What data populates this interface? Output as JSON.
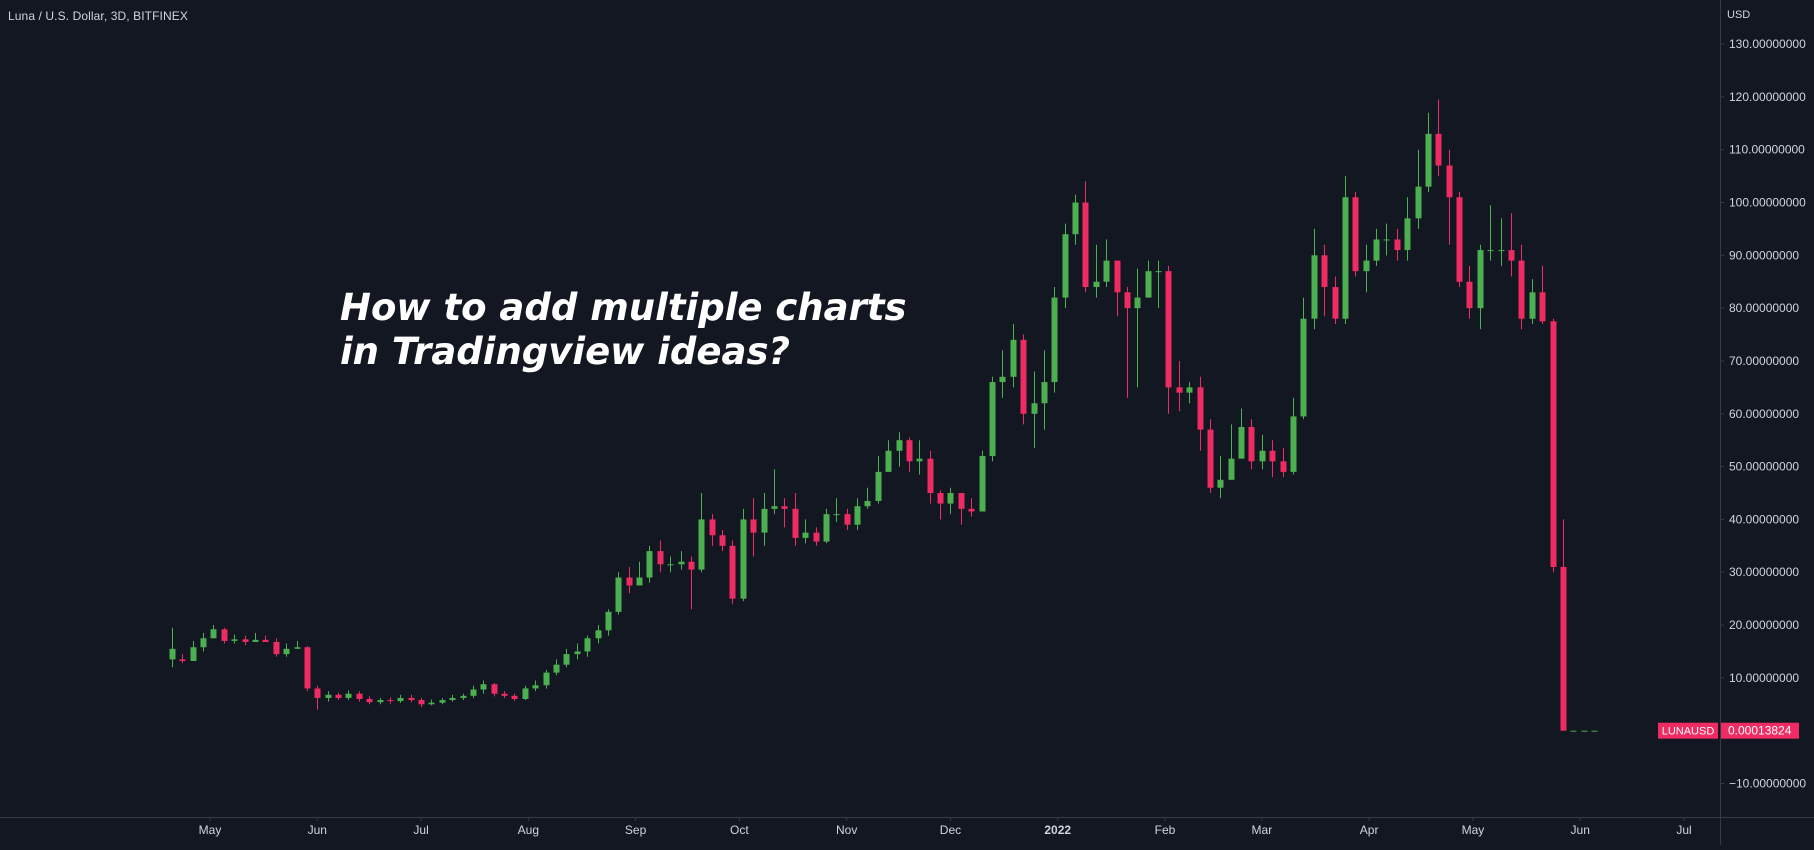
{
  "symbol_title": "Luna / U.S. Dollar, 3D, BITFINEX",
  "overlay_text": {
    "line1": "How to add multiple charts",
    "line2": "in Tradingview ideas?"
  },
  "price_label": {
    "ticker": "LUNAUSD",
    "value": "0.00013824",
    "value_num": 0.00013824,
    "color": "#ef2b63"
  },
  "colors": {
    "background": "#131722",
    "up": "#4caf50",
    "down": "#ef2b63",
    "axis_text": "#d1d4dc",
    "axis_line": "#363a45"
  },
  "chart_data": {
    "type": "candlestick",
    "ylabel": "USD",
    "y_ticks": [
      {
        "value": 130,
        "label": "130.00000000"
      },
      {
        "value": 120,
        "label": "120.00000000"
      },
      {
        "value": 110,
        "label": "110.00000000"
      },
      {
        "value": 100,
        "label": "100.00000000"
      },
      {
        "value": 90,
        "label": "90.00000000"
      },
      {
        "value": 80,
        "label": "80.00000000"
      },
      {
        "value": 70,
        "label": "70.00000000"
      },
      {
        "value": 60,
        "label": "60.00000000"
      },
      {
        "value": 50,
        "label": "50.00000000"
      },
      {
        "value": 40,
        "label": "40.00000000"
      },
      {
        "value": 30,
        "label": "30.00000000"
      },
      {
        "value": 20,
        "label": "20.00000000"
      },
      {
        "value": 10,
        "label": "10.00000000"
      },
      {
        "value": -10,
        "label": "−10.00000000"
      }
    ],
    "x_ticks": [
      {
        "date": "2021-05-01",
        "label": "May"
      },
      {
        "date": "2021-06-01",
        "label": "Jun"
      },
      {
        "date": "2021-07-01",
        "label": "Jul"
      },
      {
        "date": "2021-08-01",
        "label": "Aug"
      },
      {
        "date": "2021-09-01",
        "label": "Sep"
      },
      {
        "date": "2021-10-01",
        "label": "Oct"
      },
      {
        "date": "2021-11-01",
        "label": "Nov"
      },
      {
        "date": "2021-12-01",
        "label": "Dec"
      },
      {
        "date": "2022-01-01",
        "label": "2022"
      },
      {
        "date": "2022-02-01",
        "label": "Feb"
      },
      {
        "date": "2022-03-01",
        "label": "Mar"
      },
      {
        "date": "2022-04-01",
        "label": "Apr"
      },
      {
        "date": "2022-05-01",
        "label": "May"
      },
      {
        "date": "2022-06-01",
        "label": "Jun"
      },
      {
        "date": "2022-07-01",
        "label": "Jul"
      }
    ],
    "x_start": "2021-04-20",
    "interval_days": 3,
    "candles": [
      [
        13.5,
        15.5,
        19.5,
        12
      ],
      [
        13.5,
        13.2,
        14.5,
        12.8
      ],
      [
        13.2,
        15.8,
        17
      ],
      [
        15.8,
        17.5,
        18.5,
        15
      ],
      [
        17.5,
        19.2,
        20
      ],
      [
        19.2,
        17,
        19.5,
        16.5
      ],
      [
        17,
        17.3,
        18.2,
        16.5
      ],
      [
        17.3,
        16.8,
        18,
        16.2
      ],
      [
        16.8,
        17.2,
        18.5
      ],
      [
        17.2,
        16.8,
        18
      ],
      [
        16.8,
        14.5,
        17.5,
        14
      ],
      [
        14.5,
        15.5,
        16.5,
        14
      ],
      [
        15.5,
        15.8,
        17
      ],
      [
        15.8,
        8,
        16,
        7.5
      ],
      [
        8,
        6.2,
        8.5,
        4
      ],
      [
        6.2,
        6.8,
        7.5,
        5.5
      ],
      [
        6.8,
        6.2,
        7.2,
        5.8
      ],
      [
        6.2,
        7,
        7.6,
        5.8
      ],
      [
        7,
        6,
        7.5,
        5.5
      ],
      [
        6,
        5.4,
        6.5,
        5
      ],
      [
        5.4,
        5.8,
        6.2,
        5
      ],
      [
        5.8,
        5.6,
        6.3,
        5.1
      ],
      [
        5.6,
        6.2,
        6.8,
        5.3
      ],
      [
        6.2,
        5.8,
        6.8,
        5.4
      ],
      [
        5.8,
        5,
        6.2,
        4.5
      ],
      [
        5,
        5.3,
        5.9,
        4.8
      ],
      [
        5.3,
        5.8,
        6.2,
        5
      ],
      [
        5.8,
        6.2,
        6.8,
        5.5
      ],
      [
        6.2,
        6.6,
        7,
        5.8
      ],
      [
        6.6,
        7.8,
        8.5,
        6.2
      ],
      [
        7.8,
        8.8,
        9.5,
        7
      ],
      [
        8.8,
        7,
        9,
        6.5
      ],
      [
        7,
        6.6,
        7.5,
        6.2
      ],
      [
        6.6,
        6,
        7,
        5.6
      ],
      [
        6,
        8,
        8.5,
        5.8
      ],
      [
        8,
        8.6,
        9.5,
        7.5
      ],
      [
        8.6,
        11,
        11.5,
        8
      ],
      [
        11,
        12.5,
        13.5,
        10.5
      ],
      [
        12.5,
        14.5,
        15.5,
        12
      ],
      [
        14.5,
        15,
        16.5,
        13.5
      ],
      [
        15,
        17.5,
        18,
        14
      ],
      [
        17.5,
        19,
        20,
        16.5
      ],
      [
        19,
        22.5,
        23,
        18
      ],
      [
        22.5,
        29,
        30,
        22
      ],
      [
        29,
        27.5,
        31,
        26
      ],
      [
        27.5,
        29,
        32
      ],
      [
        29,
        34,
        35,
        28
      ],
      [
        34,
        31.5,
        36,
        30
      ],
      [
        31.5,
        31.5,
        33,
        30
      ],
      [
        31.5,
        32,
        34,
        30.5
      ],
      [
        32,
        30.5,
        33,
        23
      ],
      [
        30.5,
        40,
        45,
        30
      ],
      [
        40,
        37,
        41,
        35
      ],
      [
        37,
        35,
        38,
        34
      ],
      [
        35,
        25,
        36,
        24
      ],
      [
        25,
        40,
        42,
        24.5
      ],
      [
        40,
        37.5,
        44,
        33
      ],
      [
        37.5,
        42,
        45,
        35
      ],
      [
        42,
        42.5,
        49.5,
        41
      ],
      [
        42.5,
        42,
        44,
        38.5
      ],
      [
        42,
        36.5,
        45,
        35
      ],
      [
        36.5,
        37.5,
        40,
        35.5
      ],
      [
        37.5,
        35.8,
        38.5,
        35
      ],
      [
        35.8,
        41,
        42,
        35.5
      ],
      [
        41,
        41,
        44,
        39.5
      ],
      [
        41,
        39,
        42,
        38
      ],
      [
        39,
        42.5,
        44,
        38
      ],
      [
        42.5,
        43.5,
        46,
        42
      ],
      [
        43.5,
        49,
        52,
        43
      ],
      [
        49,
        53,
        55
      ],
      [
        53,
        55,
        56.5,
        50
      ],
      [
        55,
        51,
        55.5,
        49
      ],
      [
        51,
        51.5,
        55,
        48.5
      ],
      [
        51.5,
        45,
        53,
        43
      ],
      [
        45,
        43,
        45.5,
        40
      ],
      [
        43,
        45,
        46,
        41
      ],
      [
        45,
        42,
        45,
        39
      ],
      [
        42,
        41.5,
        44,
        40.5
      ],
      [
        41.5,
        52,
        53
      ],
      [
        52,
        66,
        67,
        51
      ],
      [
        66,
        67,
        72,
        63
      ],
      [
        67,
        74,
        77,
        65
      ],
      [
        74,
        60,
        75,
        58
      ],
      [
        60,
        62,
        68,
        53.5
      ],
      [
        62,
        66,
        72,
        57
      ],
      [
        66,
        82,
        84,
        64
      ],
      [
        82,
        94,
        96,
        80
      ],
      [
        94,
        100,
        101.5,
        92
      ],
      [
        100,
        84,
        104,
        83
      ],
      [
        84,
        85,
        92,
        82
      ],
      [
        85,
        89,
        93,
        84
      ],
      [
        89,
        83,
        89,
        78.5
      ],
      [
        83,
        80,
        84,
        63
      ],
      [
        80,
        82,
        87.5,
        65
      ],
      [
        82,
        87,
        89
      ],
      [
        87,
        87,
        89,
        80
      ],
      [
        87,
        65,
        88,
        60
      ],
      [
        65,
        64,
        70,
        60.5
      ],
      [
        64,
        65,
        66,
        62
      ],
      [
        65,
        57,
        67,
        53
      ],
      [
        57,
        46,
        59,
        45
      ],
      [
        46,
        47.5,
        52,
        44
      ],
      [
        47.5,
        51.5,
        58
      ],
      [
        51.5,
        57.5,
        61
      ],
      [
        57.5,
        51,
        59,
        49.5
      ],
      [
        51,
        53,
        56,
        49.5
      ],
      [
        53,
        51,
        55,
        48
      ],
      [
        51,
        49,
        53.5,
        48
      ],
      [
        49,
        59.5,
        63,
        48.5
      ],
      [
        59.5,
        78,
        82,
        59
      ],
      [
        78,
        90,
        95,
        76
      ],
      [
        90,
        84,
        92,
        78.5
      ],
      [
        84,
        78,
        86,
        77
      ],
      [
        78,
        101,
        105,
        77
      ],
      [
        101,
        87,
        102,
        86
      ],
      [
        87,
        89,
        92,
        83
      ],
      [
        89,
        93,
        95,
        88
      ],
      [
        93,
        93,
        96,
        90
      ],
      [
        93,
        91,
        95,
        89
      ],
      [
        91,
        97,
        101,
        89
      ],
      [
        97,
        103,
        110,
        95
      ],
      [
        103,
        113,
        117,
        102
      ],
      [
        113,
        107,
        119.5,
        105
      ],
      [
        107,
        101,
        110,
        92
      ],
      [
        101,
        85,
        102,
        84
      ],
      [
        85,
        80,
        88,
        78
      ],
      [
        80,
        91,
        92,
        76
      ],
      [
        91,
        91,
        99.5,
        89
      ],
      [
        91,
        91,
        97,
        88
      ],
      [
        91,
        89,
        98,
        86
      ],
      [
        89,
        78,
        92,
        76
      ],
      [
        78,
        83,
        85.5,
        77
      ],
      [
        83,
        77.5,
        88,
        77
      ],
      [
        77.5,
        31,
        78,
        30
      ],
      [
        31,
        0.0001,
        40,
        0
      ],
      [
        0.0001,
        0.0001
      ],
      [
        0.0001,
        0.0001
      ],
      [
        0.0001,
        0.0001
      ]
    ],
    "ylim": [
      -13.5,
      135.5
    ]
  }
}
